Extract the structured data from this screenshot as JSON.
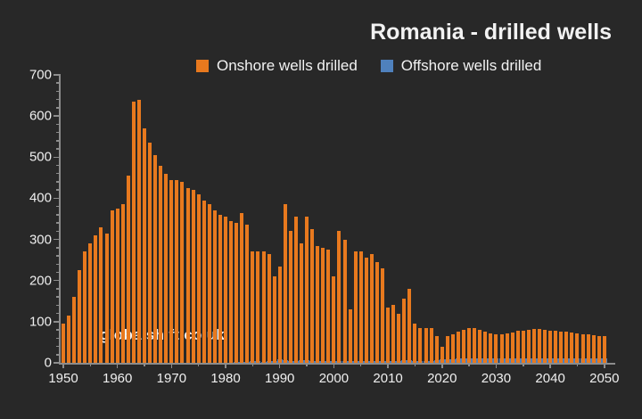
{
  "title": "Romania - drilled wells",
  "watermark": "globalshift.co.uk",
  "colors": {
    "background": "#282828",
    "onshore": "#e8791e",
    "offshore": "#4f81bd",
    "axis": "#8c8c8c",
    "text": "#f2f2f2"
  },
  "legend": [
    {
      "label": "Onshore wells drilled",
      "color": "#e8791e"
    },
    {
      "label": "Offshore wells drilled",
      "color": "#4f81bd"
    }
  ],
  "chart_data": {
    "type": "bar",
    "title": "Romania - drilled wells",
    "xlabel": "",
    "ylabel": "",
    "x_start": 1950,
    "x_end": 2050,
    "ylim": [
      0,
      700
    ],
    "y_major_step": 100,
    "y_minor_step": 20,
    "x_major_step": 10,
    "x_minor_step": 5,
    "y_tick_labels": [
      "0",
      "100",
      "200",
      "300",
      "400",
      "500",
      "600",
      "700"
    ],
    "x_tick_labels": [
      "1950",
      "1960",
      "1970",
      "1980",
      "1990",
      "2000",
      "2010",
      "2020",
      "2030",
      "2040",
      "2050"
    ],
    "grid": false,
    "legend_position": "top",
    "series": [
      {
        "name": "Onshore wells drilled",
        "color": "#e8791e",
        "values": [
          95,
          115,
          160,
          225,
          270,
          290,
          310,
          330,
          315,
          370,
          375,
          385,
          455,
          635,
          640,
          570,
          535,
          505,
          480,
          460,
          445,
          445,
          440,
          425,
          420,
          410,
          395,
          385,
          370,
          360,
          355,
          345,
          340,
          365,
          335,
          270,
          270,
          270,
          265,
          210,
          235,
          385,
          320,
          355,
          290,
          355,
          325,
          285,
          280,
          275,
          210,
          320,
          300,
          130,
          270,
          270,
          255,
          265,
          245,
          230,
          135,
          140,
          120,
          155,
          180,
          95,
          85,
          85,
          85,
          65,
          40,
          65,
          70,
          75,
          80,
          85,
          84,
          80,
          75,
          72,
          70,
          70,
          72,
          74,
          77,
          79,
          81,
          82,
          82,
          80,
          78,
          77,
          76,
          75,
          73,
          72,
          70,
          70,
          68,
          66,
          65
        ]
      },
      {
        "name": "Offshore wells drilled",
        "color": "#4f81bd",
        "values": [
          0,
          0,
          0,
          0,
          0,
          0,
          0,
          0,
          0,
          0,
          0,
          0,
          0,
          0,
          0,
          0,
          0,
          0,
          0,
          0,
          0,
          0,
          0,
          0,
          0,
          0,
          0,
          0,
          0,
          0,
          0,
          0,
          2,
          3,
          3,
          5,
          5,
          3,
          4,
          4,
          8,
          6,
          5,
          4,
          6,
          6,
          4,
          4,
          4,
          4,
          4,
          4,
          4,
          4,
          5,
          5,
          5,
          5,
          5,
          5,
          5,
          5,
          5,
          6,
          6,
          5,
          5,
          5,
          5,
          6,
          8,
          8,
          9,
          10,
          10,
          10,
          10,
          10,
          10,
          10,
          10,
          10,
          10,
          10,
          10,
          10,
          10,
          10,
          10,
          10,
          10,
          10,
          10,
          10,
          10,
          10,
          10,
          10,
          10,
          10,
          10
        ]
      }
    ]
  }
}
